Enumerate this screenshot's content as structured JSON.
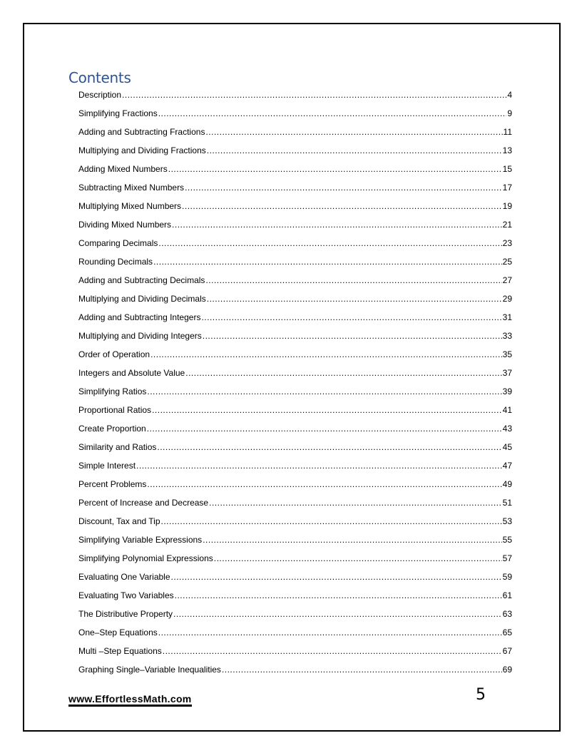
{
  "heading": "Contents",
  "toc": [
    {
      "label": "Description",
      "page": "4"
    },
    {
      "label": "Simplifying Fractions",
      "page": "9"
    },
    {
      "label": "Adding and Subtracting Fractions",
      "page": "11"
    },
    {
      "label": "Multiplying and Dividing Fractions",
      "page": "13"
    },
    {
      "label": "Adding Mixed Numbers",
      "page": "15"
    },
    {
      "label": "Subtracting Mixed Numbers",
      "page": "17"
    },
    {
      "label": "Multiplying Mixed Numbers",
      "page": "19"
    },
    {
      "label": "Dividing Mixed Numbers",
      "page": "21"
    },
    {
      "label": "Comparing Decimals",
      "page": "23"
    },
    {
      "label": "Rounding Decimals",
      "page": "25"
    },
    {
      "label": "Adding and Subtracting Decimals",
      "page": "27"
    },
    {
      "label": "Multiplying and Dividing Decimals",
      "page": "29"
    },
    {
      "label": "Adding and Subtracting Integers",
      "page": "31"
    },
    {
      "label": "Multiplying and Dividing Integers",
      "page": "33"
    },
    {
      "label": "Order of Operation",
      "page": "35"
    },
    {
      "label": "Integers and Absolute Value",
      "page": "37"
    },
    {
      "label": "Simplifying Ratios",
      "page": "39"
    },
    {
      "label": "Proportional Ratios",
      "page": "41"
    },
    {
      "label": "Create Proportion",
      "page": "43"
    },
    {
      "label": "Similarity and Ratios",
      "page": "45"
    },
    {
      "label": "Simple Interest",
      "page": "47"
    },
    {
      "label": "Percent Problems",
      "page": "49"
    },
    {
      "label": "Percent of Increase and Decrease",
      "page": "51"
    },
    {
      "label": "Discount, Tax and Tip",
      "page": "53"
    },
    {
      "label": "Simplifying Variable Expressions",
      "page": "55"
    },
    {
      "label": "Simplifying Polynomial Expressions",
      "page": "57"
    },
    {
      "label": "Evaluating One Variable",
      "page": "59"
    },
    {
      "label": "Evaluating Two Variables",
      "page": "61"
    },
    {
      "label": "The Distributive Property",
      "page": "63"
    },
    {
      "label": "One–Step Equations",
      "page": "65"
    },
    {
      "label": "Multi –Step Equations",
      "page": "67"
    },
    {
      "label": "Graphing Single–Variable Inequalities",
      "page": "69"
    }
  ],
  "footer": {
    "website": "www.EffortlessMath.com",
    "page_number": "5"
  },
  "colors": {
    "heading": "#2f5496",
    "text": "#000000"
  }
}
